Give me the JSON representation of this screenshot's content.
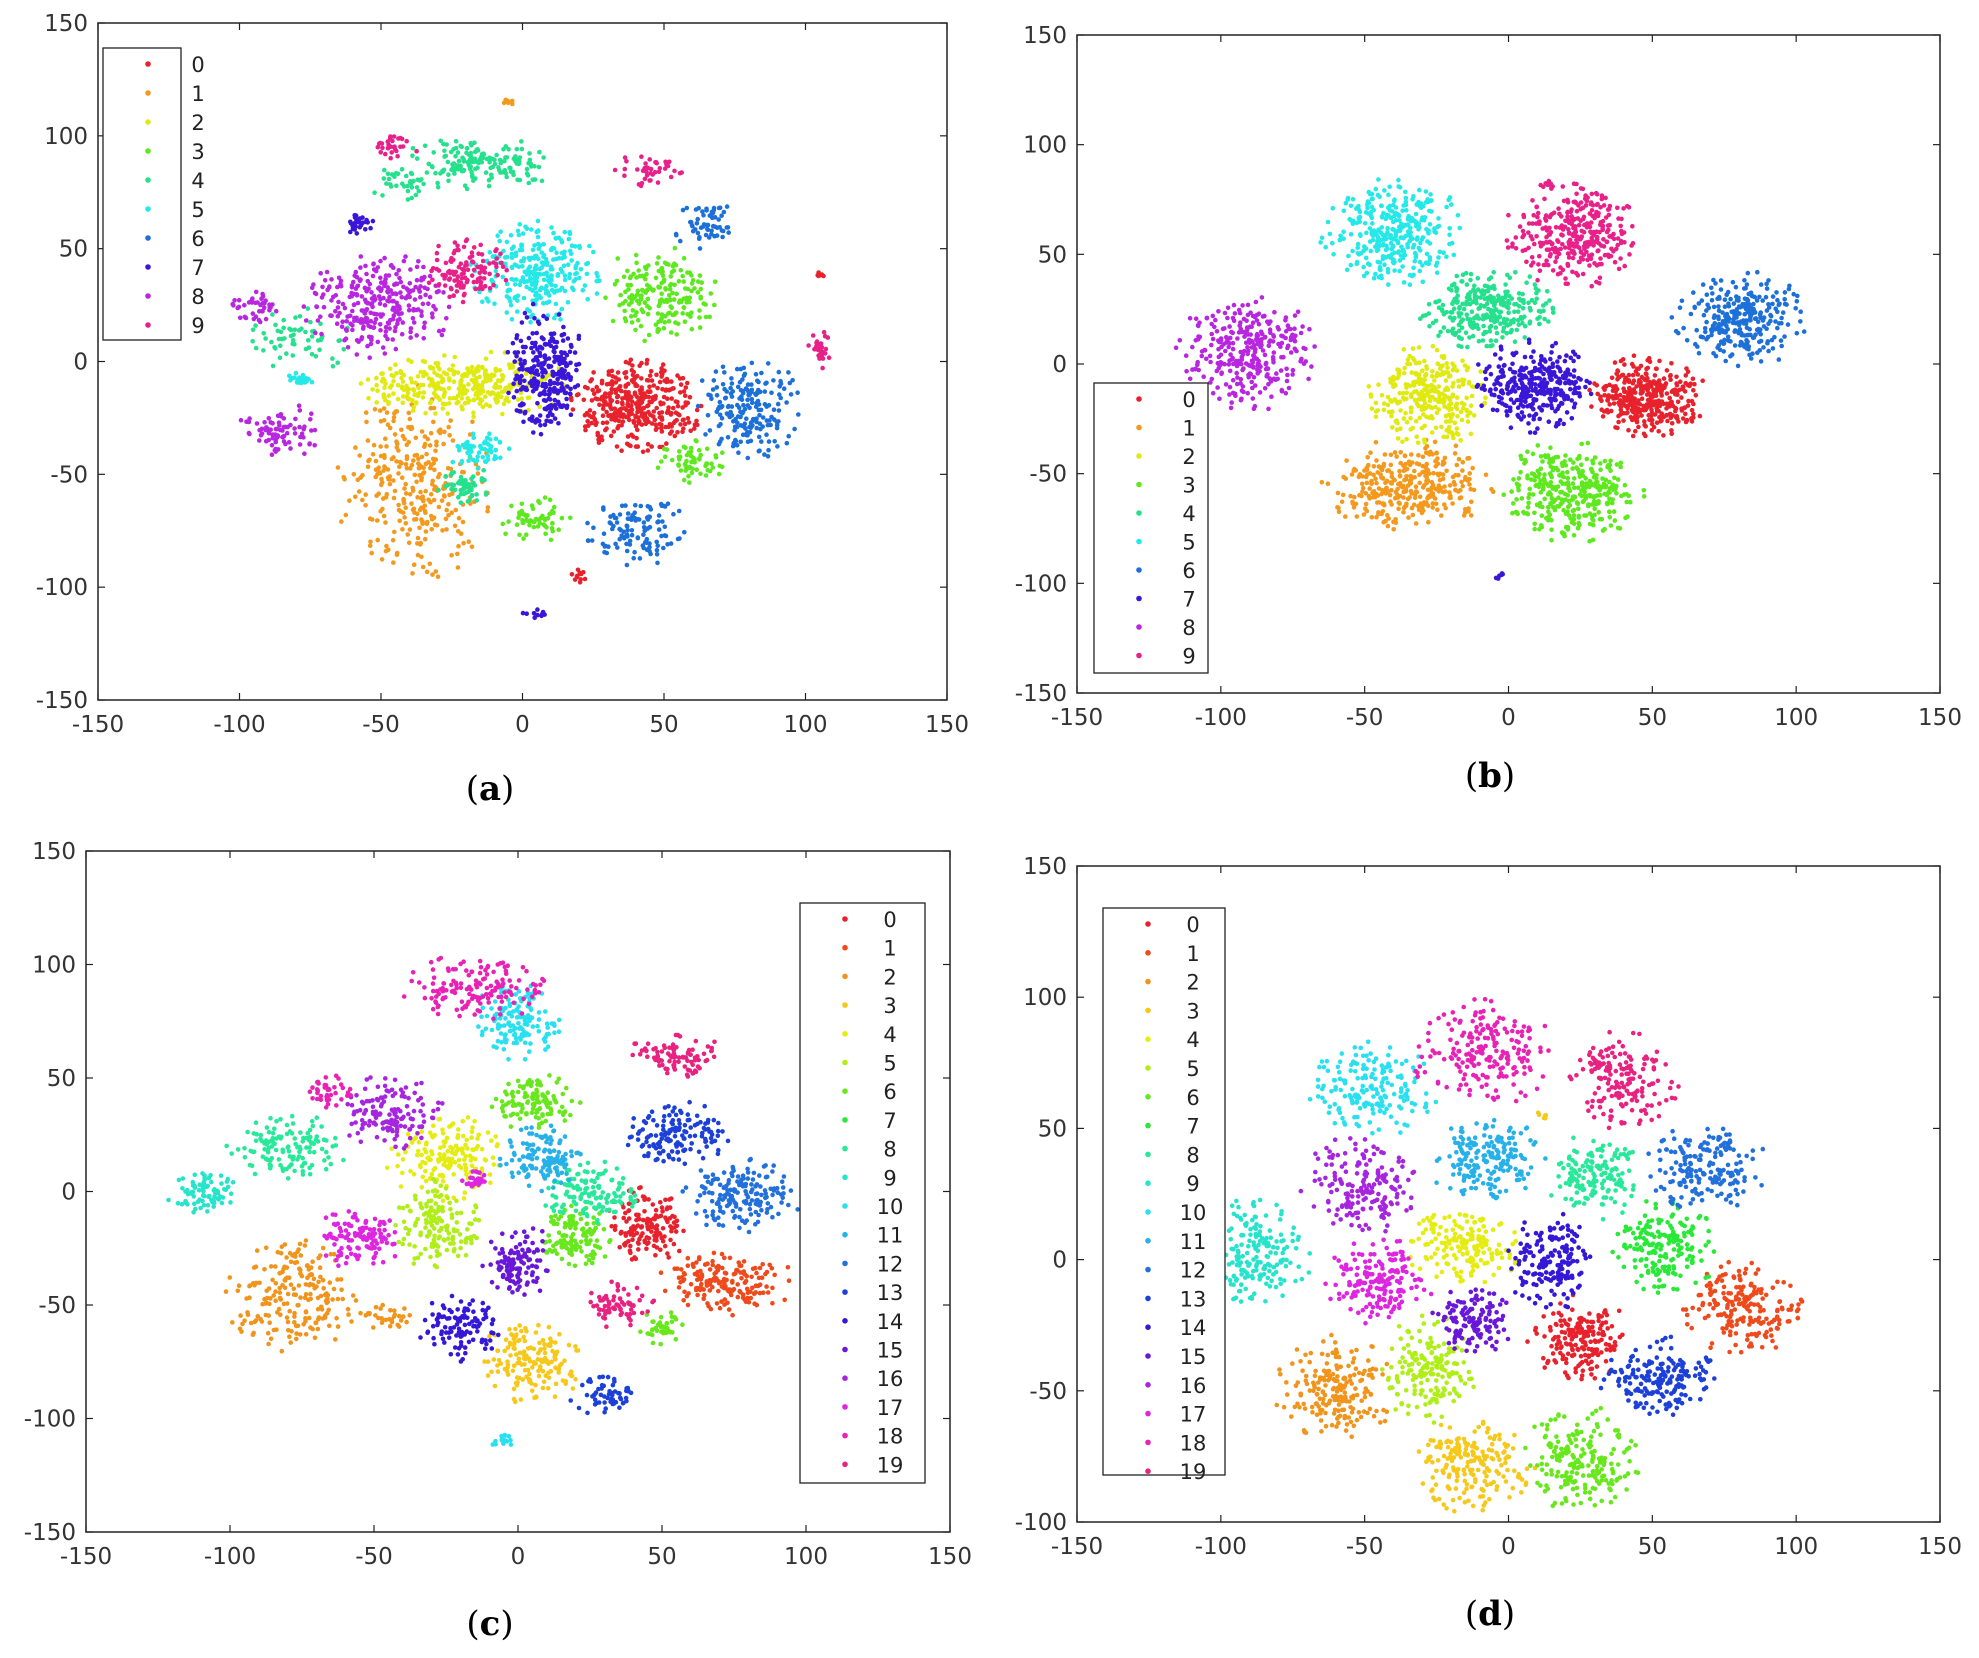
{
  "palette10": [
    "#e8222c",
    "#f39a1e",
    "#e0ea10",
    "#5ee81e",
    "#25e08c",
    "#25e8e8",
    "#1c70d8",
    "#3a16d8",
    "#b826e0",
    "#e8208a"
  ],
  "palette20": [
    "#e8222c",
    "#ee4a1c",
    "#f0941c",
    "#f6c81a",
    "#e4ec10",
    "#b0ee18",
    "#68e81c",
    "#2ae838",
    "#28e89a",
    "#26e4cc",
    "#28e0f0",
    "#28b0e8",
    "#2270dc",
    "#1c40d8",
    "#3418d8",
    "#6a18d8",
    "#a626e0",
    "#de26e0",
    "#e822b4",
    "#e82280"
  ],
  "chart_data": [
    {
      "id": "a",
      "panel_label": "a",
      "type": "scatter",
      "xlim": [
        -150,
        150
      ],
      "ylim": [
        -150,
        150
      ],
      "xticks": [
        "-150",
        "-100",
        "-50",
        "0",
        "50",
        "100",
        "150"
      ],
      "yticks": [
        "150",
        "100",
        "50",
        "0",
        "-50",
        "-100",
        "-150"
      ],
      "legend": [
        "0",
        "1",
        "2",
        "3",
        "4",
        "5",
        "6",
        "7",
        "8",
        "9"
      ],
      "legend_position": "top-left",
      "clusters": [
        {
          "label": 0,
          "cx": 40,
          "cy": -20,
          "rx": 22,
          "ry": 20,
          "n": 380
        },
        {
          "label": 0,
          "cx": 20,
          "cy": -95,
          "rx": 3,
          "ry": 3,
          "n": 12
        },
        {
          "label": 0,
          "cx": 105,
          "cy": 38,
          "rx": 2,
          "ry": 2,
          "n": 6
        },
        {
          "label": 1,
          "cx": -38,
          "cy": -55,
          "rx": 26,
          "ry": 42,
          "n": 320
        },
        {
          "label": 1,
          "cx": -5,
          "cy": 115,
          "rx": 3,
          "ry": 2,
          "n": 8
        },
        {
          "label": 2,
          "cx": -20,
          "cy": -10,
          "rx": 36,
          "ry": 14,
          "n": 330
        },
        {
          "label": 3,
          "cx": 48,
          "cy": 30,
          "rx": 20,
          "ry": 20,
          "n": 200
        },
        {
          "label": 3,
          "cx": 5,
          "cy": -70,
          "rx": 12,
          "ry": 12,
          "n": 60
        },
        {
          "label": 3,
          "cx": 60,
          "cy": -45,
          "rx": 12,
          "ry": 10,
          "n": 60
        },
        {
          "label": 4,
          "cx": -15,
          "cy": 88,
          "rx": 26,
          "ry": 12,
          "n": 160
        },
        {
          "label": 4,
          "cx": -20,
          "cy": -55,
          "rx": 10,
          "ry": 8,
          "n": 60
        },
        {
          "label": 4,
          "cx": -78,
          "cy": 10,
          "rx": 18,
          "ry": 14,
          "n": 60
        },
        {
          "label": 4,
          "cx": -42,
          "cy": 80,
          "rx": 12,
          "ry": 10,
          "n": 40
        },
        {
          "label": 5,
          "cx": 5,
          "cy": 40,
          "rx": 22,
          "ry": 22,
          "n": 280
        },
        {
          "label": 5,
          "cx": -15,
          "cy": -40,
          "rx": 12,
          "ry": 8,
          "n": 60
        },
        {
          "label": 5,
          "cx": -78,
          "cy": -8,
          "rx": 5,
          "ry": 3,
          "n": 20
        },
        {
          "label": 6,
          "cx": 80,
          "cy": -20,
          "rx": 18,
          "ry": 22,
          "n": 200
        },
        {
          "label": 6,
          "cx": 40,
          "cy": -75,
          "rx": 18,
          "ry": 15,
          "n": 120
        },
        {
          "label": 6,
          "cx": 65,
          "cy": 60,
          "rx": 12,
          "ry": 10,
          "n": 60
        },
        {
          "label": 7,
          "cx": 8,
          "cy": -5,
          "rx": 13,
          "ry": 30,
          "n": 280
        },
        {
          "label": 7,
          "cx": -58,
          "cy": 62,
          "rx": 8,
          "ry": 5,
          "n": 30
        },
        {
          "label": 7,
          "cx": 5,
          "cy": -112,
          "rx": 5,
          "ry": 2,
          "n": 12
        },
        {
          "label": 8,
          "cx": -50,
          "cy": 25,
          "rx": 26,
          "ry": 22,
          "n": 300
        },
        {
          "label": 8,
          "cx": -85,
          "cy": -30,
          "rx": 15,
          "ry": 12,
          "n": 80
        },
        {
          "label": 8,
          "cx": -95,
          "cy": 25,
          "rx": 10,
          "ry": 8,
          "n": 40
        },
        {
          "label": 9,
          "cx": -20,
          "cy": 40,
          "rx": 14,
          "ry": 14,
          "n": 120
        },
        {
          "label": 9,
          "cx": 45,
          "cy": 85,
          "rx": 12,
          "ry": 8,
          "n": 40
        },
        {
          "label": 9,
          "cx": 105,
          "cy": 5,
          "rx": 5,
          "ry": 8,
          "n": 30
        },
        {
          "label": 9,
          "cx": -45,
          "cy": 95,
          "rx": 8,
          "ry": 6,
          "n": 30
        }
      ]
    },
    {
      "id": "b",
      "panel_label": "b",
      "type": "scatter",
      "xlim": [
        -150,
        150
      ],
      "ylim": [
        -150,
        150
      ],
      "xticks": [
        "-150",
        "-100",
        "-50",
        "0",
        "50",
        "100",
        "150"
      ],
      "yticks": [
        "150",
        "100",
        "50",
        "0",
        "-50",
        "-100",
        "-150"
      ],
      "legend": [
        "0",
        "1",
        "2",
        "3",
        "4",
        "5",
        "6",
        "7",
        "8",
        "9"
      ],
      "legend_position": "bottom-left",
      "clusters": [
        {
          "label": 0,
          "cx": 48,
          "cy": -15,
          "rx": 20,
          "ry": 18,
          "n": 360
        },
        {
          "label": 1,
          "cx": -35,
          "cy": -55,
          "rx": 28,
          "ry": 20,
          "n": 340
        },
        {
          "label": 2,
          "cx": -28,
          "cy": -15,
          "rx": 20,
          "ry": 22,
          "n": 300
        },
        {
          "label": 3,
          "cx": 22,
          "cy": -58,
          "rx": 24,
          "ry": 22,
          "n": 340
        },
        {
          "label": 4,
          "cx": -8,
          "cy": 25,
          "rx": 24,
          "ry": 18,
          "n": 300
        },
        {
          "label": 5,
          "cx": -40,
          "cy": 60,
          "rx": 24,
          "ry": 24,
          "n": 340
        },
        {
          "label": 6,
          "cx": 80,
          "cy": 20,
          "rx": 22,
          "ry": 22,
          "n": 280
        },
        {
          "label": 7,
          "cx": 8,
          "cy": -10,
          "rx": 20,
          "ry": 20,
          "n": 320
        },
        {
          "label": 7,
          "cx": -3,
          "cy": -97,
          "rx": 2,
          "ry": 2,
          "n": 6
        },
        {
          "label": 8,
          "cx": -90,
          "cy": 5,
          "rx": 24,
          "ry": 25,
          "n": 320
        },
        {
          "label": 9,
          "cx": 22,
          "cy": 60,
          "rx": 22,
          "ry": 24,
          "n": 330
        }
      ]
    },
    {
      "id": "c",
      "panel_label": "c",
      "type": "scatter",
      "xlim": [
        -150,
        150
      ],
      "ylim": [
        -150,
        150
      ],
      "xticks": [
        "-150",
        "-100",
        "-50",
        "0",
        "50",
        "100",
        "150"
      ],
      "yticks": [
        "150",
        "100",
        "50",
        "0",
        "-50",
        "-100",
        "-150"
      ],
      "legend": [
        "0",
        "1",
        "2",
        "3",
        "4",
        "5",
        "6",
        "7",
        "8",
        "9",
        "10",
        "11",
        "12",
        "13",
        "14",
        "15",
        "16",
        "17",
        "18",
        "19"
      ],
      "legend_position": "right",
      "clusters": [
        {
          "label": 0,
          "cx": 45,
          "cy": -15,
          "rx": 14,
          "ry": 16,
          "n": 150
        },
        {
          "label": 1,
          "cx": 72,
          "cy": -40,
          "rx": 24,
          "ry": 14,
          "n": 170
        },
        {
          "label": 2,
          "cx": -78,
          "cy": -45,
          "rx": 24,
          "ry": 24,
          "n": 210
        },
        {
          "label": 2,
          "cx": -45,
          "cy": -55,
          "rx": 8,
          "ry": 6,
          "n": 30
        },
        {
          "label": 3,
          "cx": 5,
          "cy": -75,
          "rx": 18,
          "ry": 18,
          "n": 160
        },
        {
          "label": 4,
          "cx": -25,
          "cy": 15,
          "rx": 20,
          "ry": 18,
          "n": 170
        },
        {
          "label": 5,
          "cx": -28,
          "cy": -15,
          "rx": 14,
          "ry": 20,
          "n": 150
        },
        {
          "label": 6,
          "cx": 20,
          "cy": -20,
          "rx": 13,
          "ry": 14,
          "n": 120
        },
        {
          "label": 6,
          "cx": 5,
          "cy": 40,
          "rx": 16,
          "ry": 12,
          "n": 120
        },
        {
          "label": 6,
          "cx": 50,
          "cy": -60,
          "rx": 8,
          "ry": 8,
          "n": 40
        },
        {
          "label": 8,
          "cx": 25,
          "cy": 0,
          "rx": 16,
          "ry": 14,
          "n": 130
        },
        {
          "label": 8,
          "cx": -80,
          "cy": 20,
          "rx": 20,
          "ry": 14,
          "n": 130
        },
        {
          "label": 9,
          "cx": -110,
          "cy": 0,
          "rx": 12,
          "ry": 10,
          "n": 80
        },
        {
          "label": 10,
          "cx": 0,
          "cy": 75,
          "rx": 16,
          "ry": 16,
          "n": 150
        },
        {
          "label": 10,
          "cx": -5,
          "cy": -110,
          "rx": 4,
          "ry": 3,
          "n": 15
        },
        {
          "label": 11,
          "cx": 8,
          "cy": 15,
          "rx": 14,
          "ry": 14,
          "n": 130
        },
        {
          "label": 12,
          "cx": 78,
          "cy": -2,
          "rx": 20,
          "ry": 16,
          "n": 170
        },
        {
          "label": 13,
          "cx": 55,
          "cy": 25,
          "rx": 18,
          "ry": 14,
          "n": 140
        },
        {
          "label": 13,
          "cx": 30,
          "cy": -90,
          "rx": 12,
          "ry": 8,
          "n": 60
        },
        {
          "label": 14,
          "cx": -20,
          "cy": -60,
          "rx": 14,
          "ry": 14,
          "n": 110
        },
        {
          "label": 15,
          "cx": 0,
          "cy": -30,
          "rx": 12,
          "ry": 16,
          "n": 120
        },
        {
          "label": 16,
          "cx": -45,
          "cy": 35,
          "rx": 18,
          "ry": 16,
          "n": 140
        },
        {
          "label": 17,
          "cx": -55,
          "cy": -20,
          "rx": 14,
          "ry": 14,
          "n": 120
        },
        {
          "label": 17,
          "cx": -15,
          "cy": 5,
          "rx": 5,
          "ry": 4,
          "n": 25
        },
        {
          "label": 18,
          "cx": -15,
          "cy": 90,
          "rx": 25,
          "ry": 14,
          "n": 150
        },
        {
          "label": 18,
          "cx": -65,
          "cy": 45,
          "rx": 8,
          "ry": 8,
          "n": 40
        },
        {
          "label": 19,
          "cx": 55,
          "cy": 60,
          "rx": 16,
          "ry": 10,
          "n": 90
        },
        {
          "label": 19,
          "cx": 35,
          "cy": -50,
          "rx": 12,
          "ry": 10,
          "n": 70
        }
      ]
    },
    {
      "id": "d",
      "panel_label": "d",
      "type": "scatter",
      "xlim": [
        -150,
        150
      ],
      "ylim": [
        -100,
        150
      ],
      "xticks": [
        "-150",
        "-100",
        "-50",
        "0",
        "50",
        "100",
        "150"
      ],
      "yticks": [
        "150",
        "100",
        "50",
        "0",
        "-50",
        "-100"
      ],
      "legend": [
        "0",
        "1",
        "2",
        "3",
        "4",
        "5",
        "6",
        "7",
        "8",
        "9",
        "10",
        "11",
        "12",
        "13",
        "14",
        "15",
        "16",
        "17",
        "18",
        "19"
      ],
      "legend_position": "top-left",
      "clusters": [
        {
          "label": 0,
          "cx": 25,
          "cy": -30,
          "rx": 18,
          "ry": 16,
          "n": 190
        },
        {
          "label": 1,
          "cx": 82,
          "cy": -18,
          "rx": 20,
          "ry": 18,
          "n": 190
        },
        {
          "label": 2,
          "cx": -60,
          "cy": -50,
          "rx": 20,
          "ry": 20,
          "n": 200
        },
        {
          "label": 3,
          "cx": -12,
          "cy": -78,
          "rx": 20,
          "ry": 18,
          "n": 190
        },
        {
          "label": 4,
          "cx": -15,
          "cy": 5,
          "rx": 20,
          "ry": 14,
          "n": 170
        },
        {
          "label": 5,
          "cx": -28,
          "cy": -42,
          "rx": 16,
          "ry": 20,
          "n": 170
        },
        {
          "label": 6,
          "cx": 25,
          "cy": -75,
          "rx": 20,
          "ry": 20,
          "n": 200
        },
        {
          "label": 7,
          "cx": 55,
          "cy": 5,
          "rx": 18,
          "ry": 18,
          "n": 180
        },
        {
          "label": 8,
          "cx": 30,
          "cy": 32,
          "rx": 16,
          "ry": 16,
          "n": 160
        },
        {
          "label": 9,
          "cx": -88,
          "cy": 2,
          "rx": 20,
          "ry": 20,
          "n": 190
        },
        {
          "label": 10,
          "cx": -48,
          "cy": 65,
          "rx": 22,
          "ry": 18,
          "n": 180
        },
        {
          "label": 11,
          "cx": -8,
          "cy": 38,
          "rx": 20,
          "ry": 16,
          "n": 180
        },
        {
          "label": 12,
          "cx": 68,
          "cy": 35,
          "rx": 22,
          "ry": 16,
          "n": 180
        },
        {
          "label": 13,
          "cx": 52,
          "cy": -45,
          "rx": 20,
          "ry": 16,
          "n": 180
        },
        {
          "label": 14,
          "cx": 15,
          "cy": 0,
          "rx": 16,
          "ry": 18,
          "n": 170
        },
        {
          "label": 15,
          "cx": -12,
          "cy": -22,
          "rx": 14,
          "ry": 14,
          "n": 130
        },
        {
          "label": 16,
          "cx": -52,
          "cy": 28,
          "rx": 20,
          "ry": 18,
          "n": 180
        },
        {
          "label": 17,
          "cx": -45,
          "cy": -8,
          "rx": 18,
          "ry": 16,
          "n": 170
        },
        {
          "label": 18,
          "cx": -8,
          "cy": 78,
          "rx": 24,
          "ry": 20,
          "n": 200
        },
        {
          "label": 19,
          "cx": 40,
          "cy": 68,
          "rx": 18,
          "ry": 18,
          "n": 170
        },
        {
          "label": 3,
          "cx": 12,
          "cy": 55,
          "rx": 2,
          "ry": 2,
          "n": 6
        }
      ]
    }
  ]
}
